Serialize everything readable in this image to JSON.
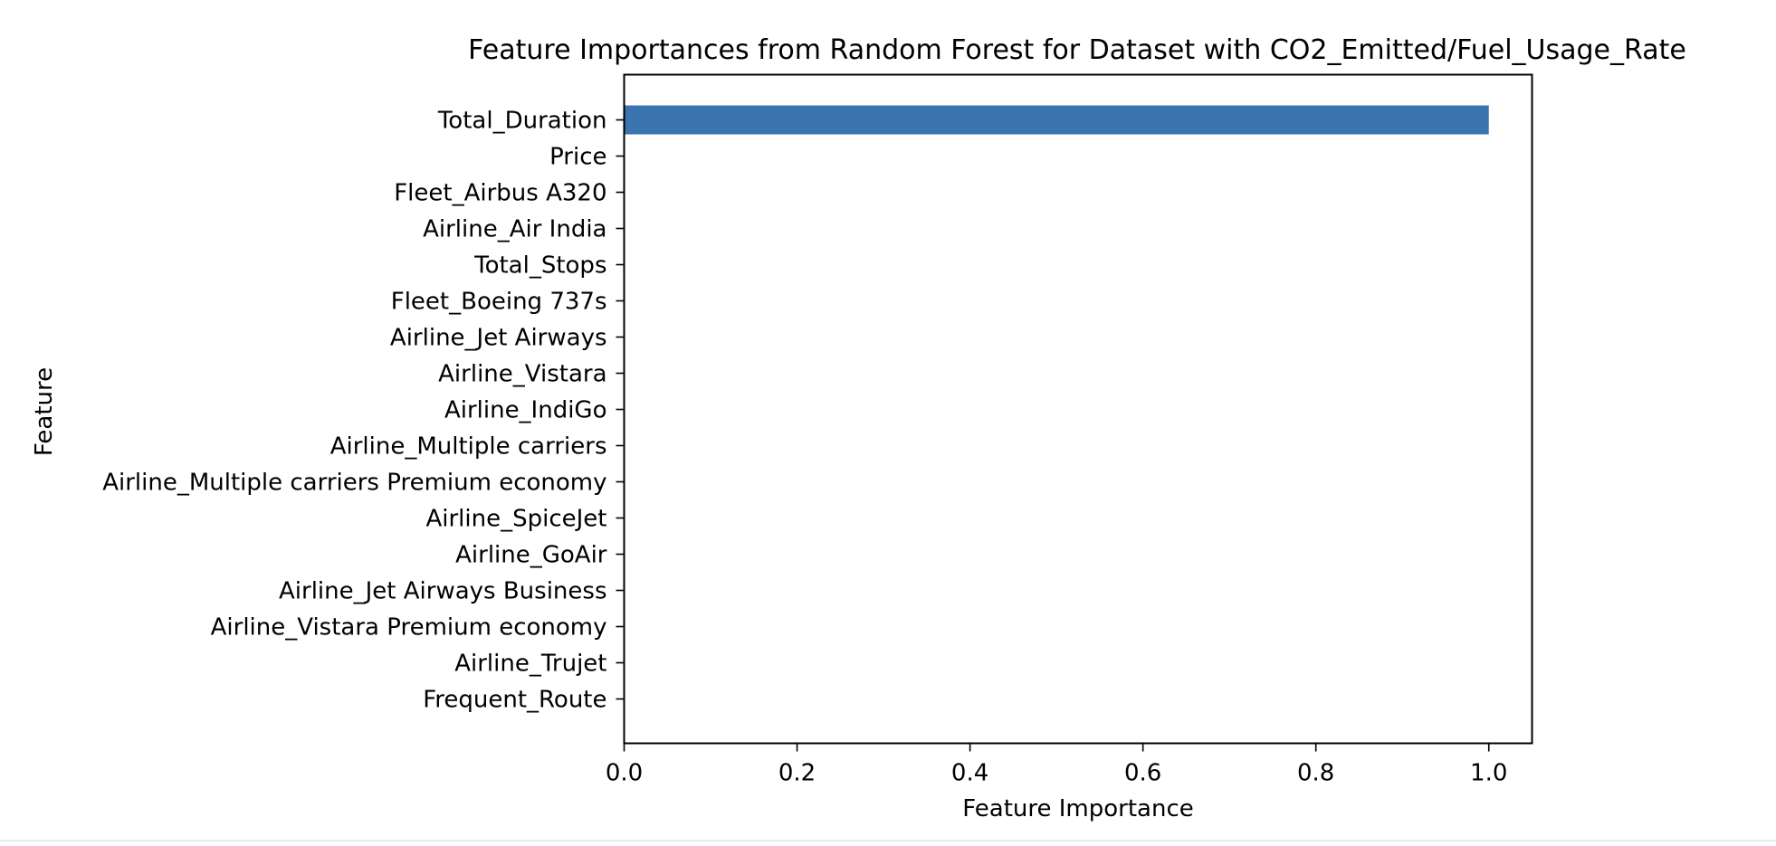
{
  "chart_data": {
    "type": "bar",
    "orientation": "horizontal",
    "title": "Feature Importances from Random Forest for Dataset with CO2_Emitted/Fuel_Usage_Rate",
    "xlabel": "Feature Importance",
    "ylabel": "Feature",
    "xlim": [
      0,
      1.05
    ],
    "xticks": [
      0.0,
      0.2,
      0.4,
      0.6,
      0.8,
      1.0
    ],
    "xtick_labels": [
      "0.0",
      "0.2",
      "0.4",
      "0.6",
      "0.8",
      "1.0"
    ],
    "categories": [
      "Total_Duration",
      "Price",
      "Fleet_Airbus A320",
      "Airline_Air India",
      "Total_Stops",
      "Fleet_Boeing 737s",
      "Airline_Jet Airways",
      "Airline_Vistara",
      "Airline_IndiGo",
      "Airline_Multiple carriers",
      "Airline_Multiple carriers Premium economy",
      "Airline_SpiceJet",
      "Airline_GoAir",
      "Airline_Jet Airways Business",
      "Airline_Vistara Premium economy",
      "Airline_Trujet",
      "Frequent_Route"
    ],
    "values": [
      1.0,
      0,
      0,
      0,
      0,
      0,
      0,
      0,
      0,
      0,
      0,
      0,
      0,
      0,
      0,
      0,
      0
    ],
    "bar_color": "#3a75af",
    "grid": false,
    "legend": "none"
  }
}
